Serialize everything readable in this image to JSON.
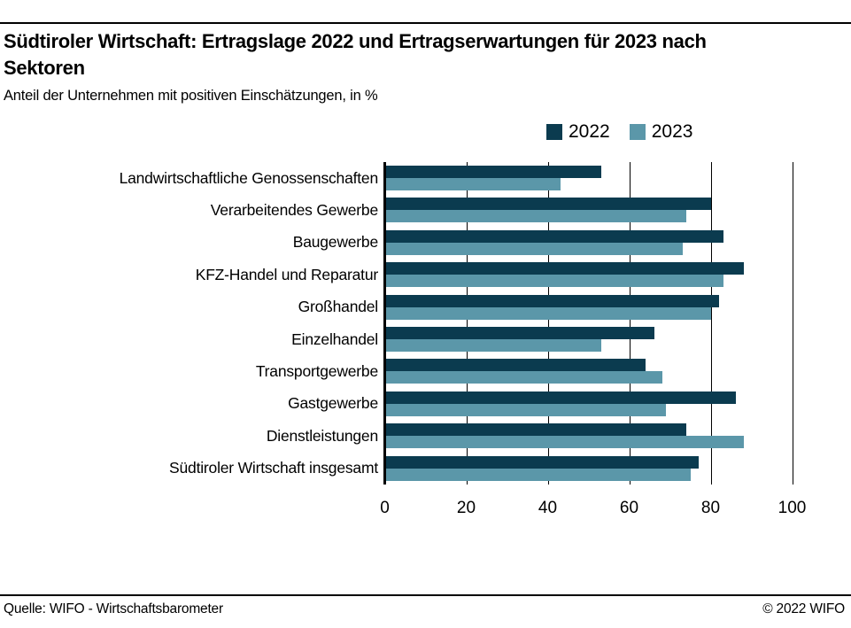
{
  "header": {
    "title": "Südtiroler Wirtschaft: Ertragslage 2022 und Ertragserwartungen für 2023 nach Sektoren",
    "subtitle": "Anteil der Unternehmen mit positiven Einschätzungen, in %"
  },
  "colors": {
    "series_2022": "#0b3b4f",
    "series_2023": "#5b97a9",
    "axis": "#000000",
    "background": "#ffffff"
  },
  "chart_data": {
    "type": "bar",
    "orientation": "horizontal",
    "title": "Südtiroler Wirtschaft: Ertragslage 2022 und Ertragserwartungen für 2023 nach Sektoren",
    "subtitle": "Anteil der Unternehmen mit positiven Einschätzungen, in %",
    "categories": [
      "Landwirtschaftliche Genossenschaften",
      "Verarbeitendes Gewerbe",
      "Baugewerbe",
      "KFZ-Handel und Reparatur",
      "Großhandel",
      "Einzelhandel",
      "Transportgewerbe",
      "Gastgewerbe",
      "Dienstleistungen",
      "Südtiroler Wirtschaft insgesamt"
    ],
    "series": [
      {
        "name": "2022",
        "color": "#0b3b4f",
        "values": [
          53,
          80,
          83,
          88,
          82,
          66,
          64,
          86,
          74,
          77
        ]
      },
      {
        "name": "2023",
        "color": "#5b97a9",
        "values": [
          43,
          74,
          73,
          83,
          80,
          53,
          68,
          69,
          88,
          75
        ]
      }
    ],
    "xlabel": "",
    "ylabel": "",
    "xlim": [
      0,
      100
    ],
    "xticks": [
      0,
      20,
      40,
      60,
      80,
      100
    ],
    "grid": true,
    "legend_position": "top-right"
  },
  "legend": [
    {
      "label": "2022",
      "color": "#0b3b4f"
    },
    {
      "label": "2023",
      "color": "#5b97a9"
    }
  ],
  "footer": {
    "source": "Quelle: WIFO - Wirtschaftsbarometer",
    "copyright": "© 2022 WIFO"
  }
}
